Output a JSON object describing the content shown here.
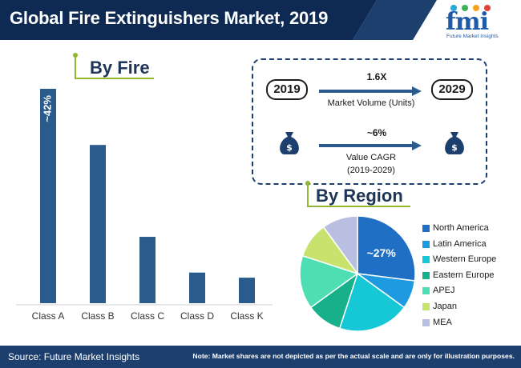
{
  "header": {
    "title": "Global Fire Extinguishers Market, 2019",
    "colors": {
      "banner_dark": "#0e2a52",
      "banner": "#1d3f6e",
      "accent": "#1e5aa8"
    }
  },
  "logo": {
    "mark": "fmi",
    "subtitle": "Future Market Insights"
  },
  "by_fire": {
    "heading": "By Fire"
  },
  "by_region": {
    "heading": "By Region"
  },
  "infobox": {
    "volume": {
      "from": "2019",
      "to": "2029",
      "value": "1.6X",
      "label": "Market Volume (Units)"
    },
    "cagr": {
      "value": "~6%",
      "label": "Value CAGR",
      "period": "(2019-2029)",
      "icon": "money-bag-icon"
    }
  },
  "chart_data": [
    {
      "type": "bar",
      "title": "By Fire",
      "categories": [
        "Class A",
        "Class B",
        "Class C",
        "Class D",
        "Class K"
      ],
      "values": [
        42,
        31,
        13,
        6,
        5
      ],
      "data_labels": [
        "~42%",
        "",
        "",
        "",
        ""
      ],
      "color": "#2b5a8c"
    },
    {
      "type": "pie",
      "title": "By Region",
      "categories": [
        "North America",
        "Latin America",
        "Western Europe",
        "Eastern Europe",
        "APEJ",
        "Japan",
        "MEA"
      ],
      "values": [
        27,
        8,
        20,
        10,
        15,
        10,
        10
      ],
      "data_labels": [
        "~27%",
        "",
        "",
        "",
        "",
        "",
        ""
      ],
      "colors": [
        "#1f6fc4",
        "#1e9be0",
        "#16c7d6",
        "#16b08a",
        "#4ddeb2",
        "#c8e26e",
        "#b9bfe0"
      ],
      "legend": "right"
    }
  ],
  "footer": {
    "source": "Source: Future Market Insights",
    "note": "Note: Market shares are not depicted as per the actual scale and are only for illustration purposes."
  }
}
